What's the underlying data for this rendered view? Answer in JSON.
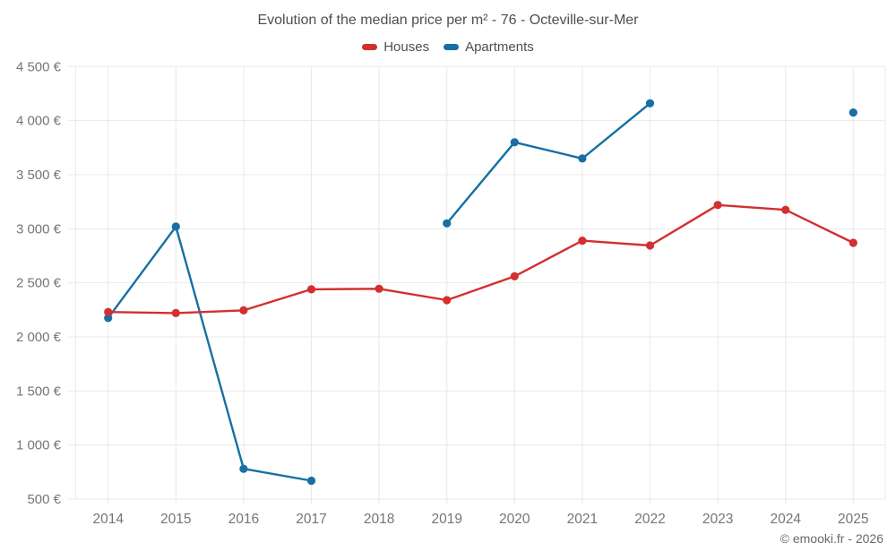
{
  "header": {
    "title": "Evolution of the median price per m² - 76 - Octeville-sur-Mer"
  },
  "footer": {
    "credit": "© emooki.fr - 2026"
  },
  "colors": {
    "houses": "#d32f2f",
    "apartments": "#176fa4",
    "grid": "#e9e9e9",
    "axis_text": "#757575",
    "title_text": "#4f4f4f",
    "background": "#ffffff"
  },
  "chart_data": {
    "type": "line",
    "title": "Evolution of the median price per m² - 76 - Octeville-sur-Mer",
    "categories": [
      "2014",
      "2015",
      "2016",
      "2017",
      "2018",
      "2019",
      "2020",
      "2021",
      "2022",
      "2023",
      "2024",
      "2025"
    ],
    "series": [
      {
        "name": "Houses",
        "color": "#d32f2f",
        "values": [
          2230,
          2220,
          2245,
          2440,
          2445,
          2340,
          2560,
          2890,
          2845,
          3220,
          3175,
          2870
        ]
      },
      {
        "name": "Apartments",
        "color": "#176fa4",
        "values": [
          2175,
          3020,
          780,
          670,
          null,
          3050,
          3800,
          3650,
          4160,
          null,
          null,
          4075
        ]
      }
    ],
    "xlabel": "",
    "ylabel": "",
    "unit": "€",
    "ylim": [
      500,
      4500
    ],
    "y_ticks": [
      {
        "value": 500,
        "label": "500 €"
      },
      {
        "value": 1000,
        "label": "1 000 €"
      },
      {
        "value": 1500,
        "label": "1 500 €"
      },
      {
        "value": 2000,
        "label": "2 000 €"
      },
      {
        "value": 2500,
        "label": "2 500 €"
      },
      {
        "value": 3000,
        "label": "3 000 €"
      },
      {
        "value": 3500,
        "label": "3 500 €"
      },
      {
        "value": 4000,
        "label": "4 000 €"
      },
      {
        "value": 4500,
        "label": "4 500 €"
      }
    ],
    "grid": true,
    "legend_position": "top",
    "notes": "Apartments series has no data for 2018, 2023, 2024; 2025 is an isolated point"
  }
}
